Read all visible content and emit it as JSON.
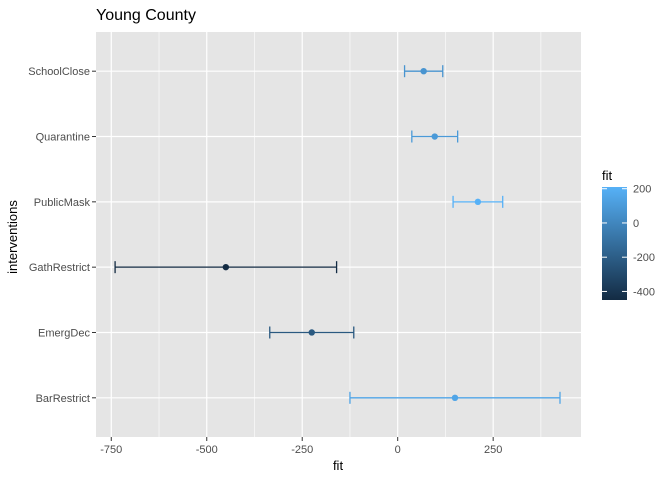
{
  "chart_data": {
    "type": "errorbar",
    "title": "Young County",
    "xlabel": "fit",
    "ylabel": "interventions",
    "xlim": [
      -790,
      480
    ],
    "x_ticks": [
      -750,
      -500,
      -250,
      0,
      250
    ],
    "x_tick_labels": [
      "-750",
      "-500",
      "-250",
      "0",
      "250"
    ],
    "categories": [
      "BarRestrict",
      "EmergDec",
      "GathRestrict",
      "PublicMask",
      "Quarantine",
      "SchoolClose"
    ],
    "points": [
      {
        "category": "BarRestrict",
        "fit": 150,
        "lower": -125,
        "upper": 425
      },
      {
        "category": "EmergDec",
        "fit": -225,
        "lower": -335,
        "upper": -115
      },
      {
        "category": "GathRestrict",
        "fit": -450,
        "lower": -740,
        "upper": -160
      },
      {
        "category": "PublicMask",
        "fit": 210,
        "lower": 145,
        "upper": 275
      },
      {
        "category": "Quarantine",
        "fit": 97,
        "lower": 37,
        "upper": 157
      },
      {
        "category": "SchoolClose",
        "fit": 68,
        "lower": 18,
        "upper": 118
      }
    ],
    "legend": {
      "title": "fit",
      "position": "right",
      "ticks": [
        200,
        0,
        -200,
        -400
      ],
      "tick_labels": [
        "200",
        "0",
        "-200",
        "-400"
      ],
      "range": [
        -450,
        210
      ],
      "color_low": "#132b43",
      "color_high": "#56b1f7"
    },
    "grid": true,
    "panel_background": "#e5e5e5",
    "grid_color": "#ffffff"
  }
}
